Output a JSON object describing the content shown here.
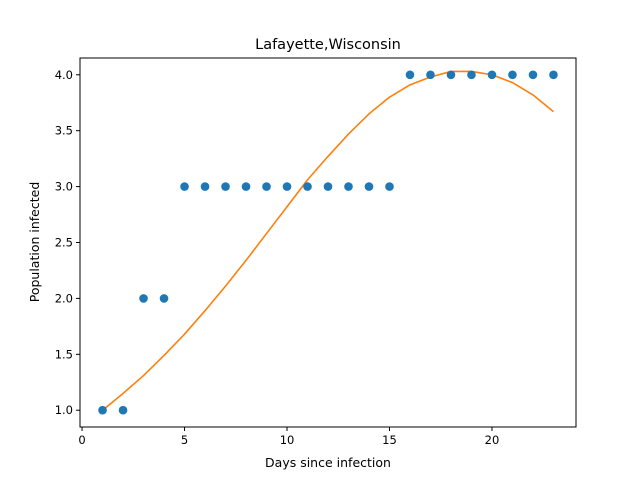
{
  "chart_data": {
    "type": "scatter",
    "title": "Lafayette,Wisconsin",
    "xlabel": "Days since infection",
    "ylabel": "Population infected",
    "xlim": [
      -0.1,
      24.1
    ],
    "ylim": [
      0.85,
      4.15
    ],
    "xticks": [
      0,
      5,
      10,
      15,
      20
    ],
    "yticks": [
      1.0,
      1.5,
      2.0,
      2.5,
      3.0,
      3.5,
      4.0
    ],
    "xtick_labels": [
      "0",
      "5",
      "10",
      "15",
      "20"
    ],
    "ytick_labels": [
      "1.0",
      "1.5",
      "2.0",
      "2.5",
      "3.0",
      "3.5",
      "4.0"
    ],
    "grid": false,
    "legend": "none",
    "series": [
      {
        "kind": "scatter",
        "color": "#1f77b4",
        "x": [
          1,
          2,
          3,
          4,
          5,
          6,
          7,
          8,
          9,
          10,
          11,
          12,
          13,
          14,
          15,
          16,
          17,
          18,
          19,
          20,
          21,
          22,
          23
        ],
        "y": [
          1,
          1,
          2,
          2,
          3,
          3,
          3,
          3,
          3,
          3,
          3,
          3,
          3,
          3,
          3,
          4,
          4,
          4,
          4,
          4,
          4,
          4,
          4
        ]
      },
      {
        "kind": "line",
        "color": "#ff7f0e",
        "x": [
          1,
          2,
          3,
          4,
          5,
          6,
          7,
          8,
          9,
          10,
          11,
          12,
          13,
          14,
          15,
          16,
          17,
          18,
          19,
          20,
          21,
          22,
          23
        ],
        "y": [
          1.0,
          1.15,
          1.31,
          1.49,
          1.68,
          1.89,
          2.11,
          2.34,
          2.58,
          2.82,
          3.06,
          3.27,
          3.47,
          3.65,
          3.8,
          3.91,
          3.98,
          4.03,
          4.03,
          4.0,
          3.93,
          3.82,
          3.67
        ]
      }
    ]
  }
}
